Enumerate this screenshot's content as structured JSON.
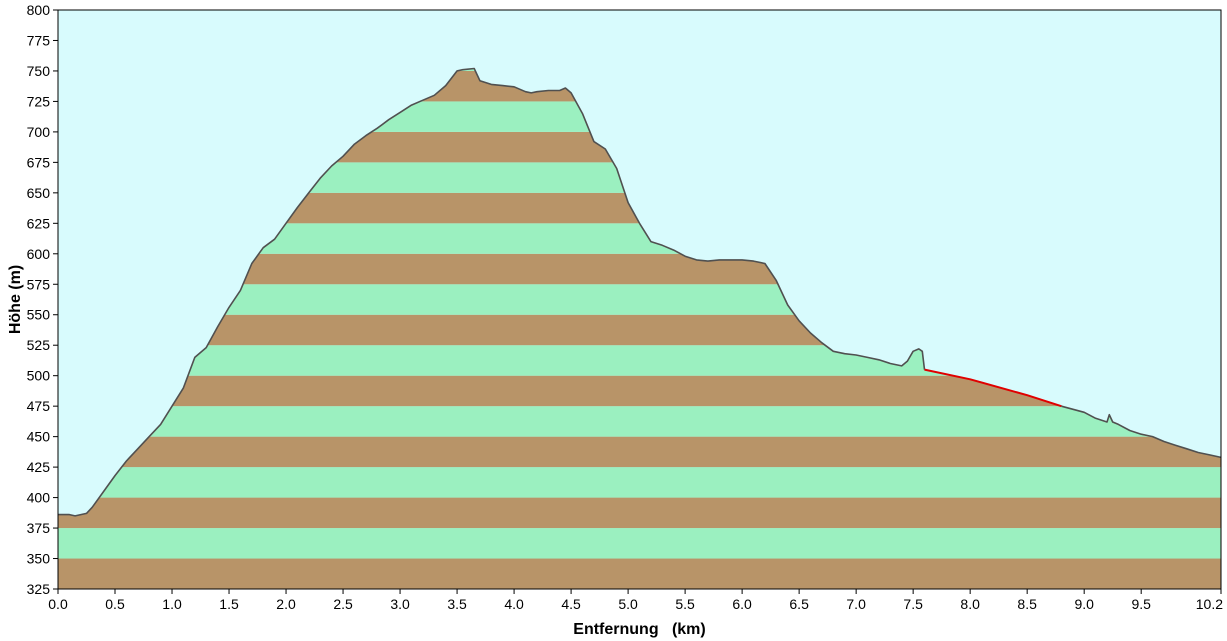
{
  "chart_data": {
    "type": "area",
    "title": "",
    "xlabel": "Entfernung   (km)",
    "ylabel": "Höhe (m)",
    "xlim": [
      0.0,
      10.2
    ],
    "ylim": [
      325,
      800
    ],
    "x_ticks": [
      "0.0",
      "0.5",
      "1.0",
      "1.5",
      "2.0",
      "2.5",
      "3.0",
      "3.5",
      "4.0",
      "4.5",
      "5.0",
      "5.5",
      "6.0",
      "6.5",
      "7.0",
      "7.5",
      "8.0",
      "8.5",
      "9.0",
      "9.5",
      "10.2"
    ],
    "y_ticks": [
      "325",
      "350",
      "375",
      "400",
      "425",
      "450",
      "475",
      "500",
      "525",
      "550",
      "575",
      "600",
      "625",
      "650",
      "675",
      "700",
      "725",
      "750",
      "775",
      "800"
    ],
    "grid": false,
    "legend": "none",
    "series": [
      {
        "type": "profile",
        "x": [
          0.0,
          0.1,
          0.15,
          0.25,
          0.3,
          0.4,
          0.5,
          0.6,
          0.7,
          0.8,
          0.9,
          1.0,
          1.1,
          1.2,
          1.3,
          1.4,
          1.5,
          1.6,
          1.7,
          1.8,
          1.9,
          2.0,
          2.1,
          2.2,
          2.3,
          2.4,
          2.5,
          2.6,
          2.7,
          2.8,
          2.9,
          3.0,
          3.1,
          3.2,
          3.3,
          3.4,
          3.5,
          3.55,
          3.65,
          3.7,
          3.8,
          3.9,
          4.0,
          4.1,
          4.15,
          4.2,
          4.3,
          4.4,
          4.45,
          4.5,
          4.6,
          4.7,
          4.8,
          4.9,
          5.0,
          5.1,
          5.2,
          5.3,
          5.4,
          5.5,
          5.6,
          5.7,
          5.8,
          5.9,
          6.0,
          6.1,
          6.2,
          6.3,
          6.4,
          6.5,
          6.6,
          6.7,
          6.8,
          6.9,
          7.0,
          7.1,
          7.2,
          7.3,
          7.4,
          7.45,
          7.5,
          7.55,
          7.58,
          7.6
        ],
        "y": [
          386,
          386,
          385,
          387,
          392,
          405,
          418,
          430,
          440,
          450,
          460,
          475,
          490,
          515,
          523,
          540,
          556,
          570,
          592,
          605,
          612,
          625,
          638,
          650,
          662,
          672,
          680,
          690,
          697,
          703,
          710,
          716,
          722,
          726,
          730,
          738,
          750,
          751,
          752,
          742,
          739,
          738,
          737,
          733,
          732,
          733,
          734,
          734,
          736,
          732,
          715,
          692,
          686,
          670,
          642,
          625,
          610,
          607,
          603,
          598,
          595,
          594,
          595,
          595,
          595,
          594,
          592,
          578,
          558,
          545,
          535,
          527,
          520,
          518,
          517,
          515,
          513,
          510,
          508,
          512,
          520,
          522,
          520,
          505
        ]
      },
      {
        "type": "connector",
        "color": "#e00000",
        "x": [
          7.6,
          8.0,
          8.5,
          8.8
        ],
        "y": [
          505,
          497,
          484,
          475
        ]
      },
      {
        "type": "profile",
        "x": [
          8.8,
          9.0,
          9.1,
          9.2,
          9.22,
          9.25,
          9.3,
          9.4,
          9.5,
          9.6,
          9.7,
          9.8,
          9.9,
          10.0,
          10.1,
          10.2
        ],
        "y": [
          475,
          470,
          465,
          462,
          468,
          462,
          460,
          455,
          452,
          450,
          446,
          443,
          440,
          437,
          435,
          433
        ]
      }
    ],
    "colors": {
      "sky": "#d8fbfd",
      "band_green": "#9bf0c0",
      "band_brown": "#b89468",
      "outline": "#505050",
      "connector": "#e00000"
    }
  }
}
